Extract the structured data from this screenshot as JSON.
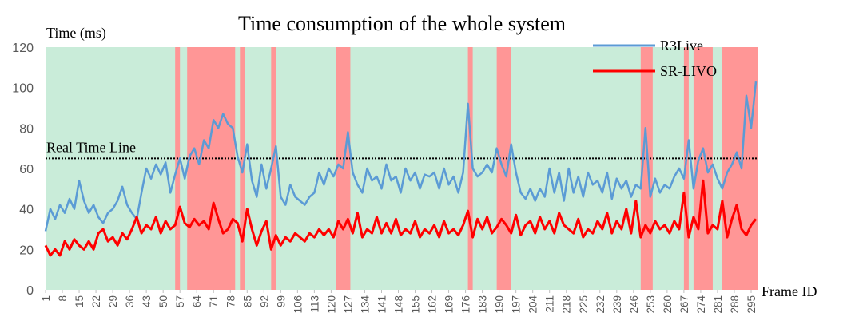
{
  "chart_data": {
    "type": "line",
    "title": "Time consumption of the whole system",
    "ylabel": "Time (ms)",
    "xlabel": "Frame ID",
    "ylim": [
      0,
      120
    ],
    "yticks": [
      0,
      20,
      40,
      60,
      80,
      100,
      120
    ],
    "xlim": [
      1,
      298
    ],
    "xticks": [
      1,
      8,
      15,
      22,
      29,
      36,
      43,
      50,
      57,
      64,
      71,
      78,
      85,
      92,
      99,
      106,
      113,
      120,
      127,
      134,
      141,
      148,
      155,
      162,
      169,
      176,
      183,
      190,
      197,
      204,
      211,
      218,
      225,
      232,
      239,
      246,
      253,
      260,
      267,
      274,
      281,
      288,
      295
    ],
    "grid": false,
    "legend_position": "top-right",
    "reference_line": {
      "label": "Real Time Line",
      "value": 65
    },
    "background_regions": {
      "default_color": "#c9ecd9",
      "highlight_color": "#ff9696",
      "highlight_ranges": [
        [
          55,
          57
        ],
        [
          60,
          80
        ],
        [
          82,
          84
        ],
        [
          95,
          97
        ],
        [
          122,
          128
        ],
        [
          177,
          179
        ],
        [
          189,
          195
        ],
        [
          249,
          254
        ],
        [
          267,
          269
        ],
        [
          271,
          279
        ],
        [
          283,
          298
        ]
      ]
    },
    "series": [
      {
        "name": "R3Live",
        "color": "#5b9bd5",
        "x": [
          1,
          3,
          5,
          7,
          9,
          11,
          13,
          15,
          17,
          19,
          21,
          23,
          25,
          27,
          29,
          31,
          33,
          35,
          37,
          39,
          41,
          43,
          45,
          47,
          49,
          51,
          53,
          55,
          57,
          59,
          61,
          63,
          65,
          67,
          69,
          71,
          73,
          75,
          77,
          79,
          81,
          83,
          85,
          87,
          89,
          91,
          93,
          95,
          97,
          99,
          101,
          103,
          105,
          107,
          109,
          111,
          113,
          115,
          117,
          119,
          121,
          123,
          125,
          127,
          129,
          131,
          133,
          135,
          137,
          139,
          141,
          143,
          145,
          147,
          149,
          151,
          153,
          155,
          157,
          159,
          161,
          163,
          165,
          167,
          169,
          171,
          173,
          175,
          177,
          179,
          181,
          183,
          185,
          187,
          189,
          191,
          193,
          195,
          197,
          199,
          201,
          203,
          205,
          207,
          209,
          211,
          213,
          215,
          217,
          219,
          221,
          223,
          225,
          227,
          229,
          231,
          233,
          235,
          237,
          239,
          241,
          243,
          245,
          247,
          249,
          251,
          253,
          255,
          257,
          259,
          261,
          263,
          265,
          267,
          269,
          271,
          273,
          275,
          277,
          279,
          281,
          283,
          285,
          287,
          289,
          291,
          293,
          295,
          297
        ],
        "values": [
          29,
          40,
          35,
          42,
          38,
          45,
          40,
          54,
          44,
          38,
          42,
          36,
          33,
          38,
          40,
          44,
          51,
          42,
          38,
          35,
          48,
          60,
          55,
          62,
          57,
          63,
          48,
          57,
          65,
          55,
          66,
          70,
          62,
          74,
          70,
          84,
          80,
          87,
          82,
          80,
          66,
          58,
          72,
          54,
          46,
          62,
          50,
          60,
          71,
          46,
          42,
          52,
          46,
          44,
          42,
          46,
          48,
          58,
          52,
          60,
          56,
          62,
          60,
          78,
          58,
          52,
          48,
          60,
          54,
          56,
          50,
          62,
          54,
          56,
          48,
          60,
          54,
          58,
          50,
          57,
          56,
          58,
          50,
          60,
          52,
          56,
          48,
          58,
          92,
          60,
          56,
          58,
          62,
          58,
          70,
          62,
          56,
          72,
          58,
          48,
          45,
          50,
          44,
          50,
          46,
          60,
          48,
          58,
          44,
          60,
          48,
          56,
          46,
          58,
          52,
          54,
          48,
          58,
          45,
          55,
          50,
          54,
          46,
          52,
          50,
          80,
          46,
          55,
          48,
          52,
          50,
          56,
          60,
          55,
          74,
          50,
          64,
          70,
          58,
          62,
          55,
          50,
          58,
          62,
          68,
          60,
          96,
          80,
          103
        ]
      },
      {
        "name": "SR-LIVO",
        "color": "#ff0000",
        "x": [
          1,
          3,
          5,
          7,
          9,
          11,
          13,
          15,
          17,
          19,
          21,
          23,
          25,
          27,
          29,
          31,
          33,
          35,
          37,
          39,
          41,
          43,
          45,
          47,
          49,
          51,
          53,
          55,
          57,
          59,
          61,
          63,
          65,
          67,
          69,
          71,
          73,
          75,
          77,
          79,
          81,
          83,
          85,
          87,
          89,
          91,
          93,
          95,
          97,
          99,
          101,
          103,
          105,
          107,
          109,
          111,
          113,
          115,
          117,
          119,
          121,
          123,
          125,
          127,
          129,
          131,
          133,
          135,
          137,
          139,
          141,
          143,
          145,
          147,
          149,
          151,
          153,
          155,
          157,
          159,
          161,
          163,
          165,
          167,
          169,
          171,
          173,
          175,
          177,
          179,
          181,
          183,
          185,
          187,
          189,
          191,
          193,
          195,
          197,
          199,
          201,
          203,
          205,
          207,
          209,
          211,
          213,
          215,
          217,
          219,
          221,
          223,
          225,
          227,
          229,
          231,
          233,
          235,
          237,
          239,
          241,
          243,
          245,
          247,
          249,
          251,
          253,
          255,
          257,
          259,
          261,
          263,
          265,
          267,
          269,
          271,
          273,
          275,
          277,
          279,
          281,
          283,
          285,
          287,
          289,
          291,
          293,
          295,
          297
        ],
        "values": [
          22,
          17,
          20,
          17,
          24,
          20,
          25,
          22,
          20,
          24,
          20,
          28,
          30,
          24,
          26,
          22,
          28,
          25,
          30,
          36,
          28,
          32,
          30,
          36,
          28,
          34,
          30,
          32,
          41,
          33,
          31,
          35,
          32,
          34,
          30,
          43,
          35,
          28,
          30,
          35,
          33,
          24,
          40,
          30,
          22,
          29,
          34,
          20,
          27,
          22,
          26,
          24,
          28,
          26,
          24,
          28,
          26,
          30,
          27,
          30,
          26,
          34,
          30,
          35,
          28,
          38,
          26,
          30,
          28,
          36,
          28,
          33,
          28,
          35,
          27,
          30,
          28,
          34,
          26,
          30,
          28,
          32,
          26,
          34,
          28,
          30,
          27,
          32,
          39,
          26,
          35,
          30,
          36,
          28,
          31,
          35,
          32,
          28,
          37,
          27,
          32,
          34,
          28,
          36,
          30,
          34,
          28,
          38,
          32,
          30,
          28,
          35,
          26,
          30,
          28,
          34,
          30,
          38,
          28,
          34,
          30,
          40,
          28,
          44,
          26,
          32,
          28,
          34,
          30,
          32,
          28,
          34,
          30,
          48,
          26,
          36,
          30,
          54,
          28,
          32,
          30,
          44,
          26,
          35,
          42,
          30,
          27,
          32,
          35
        ]
      }
    ]
  }
}
